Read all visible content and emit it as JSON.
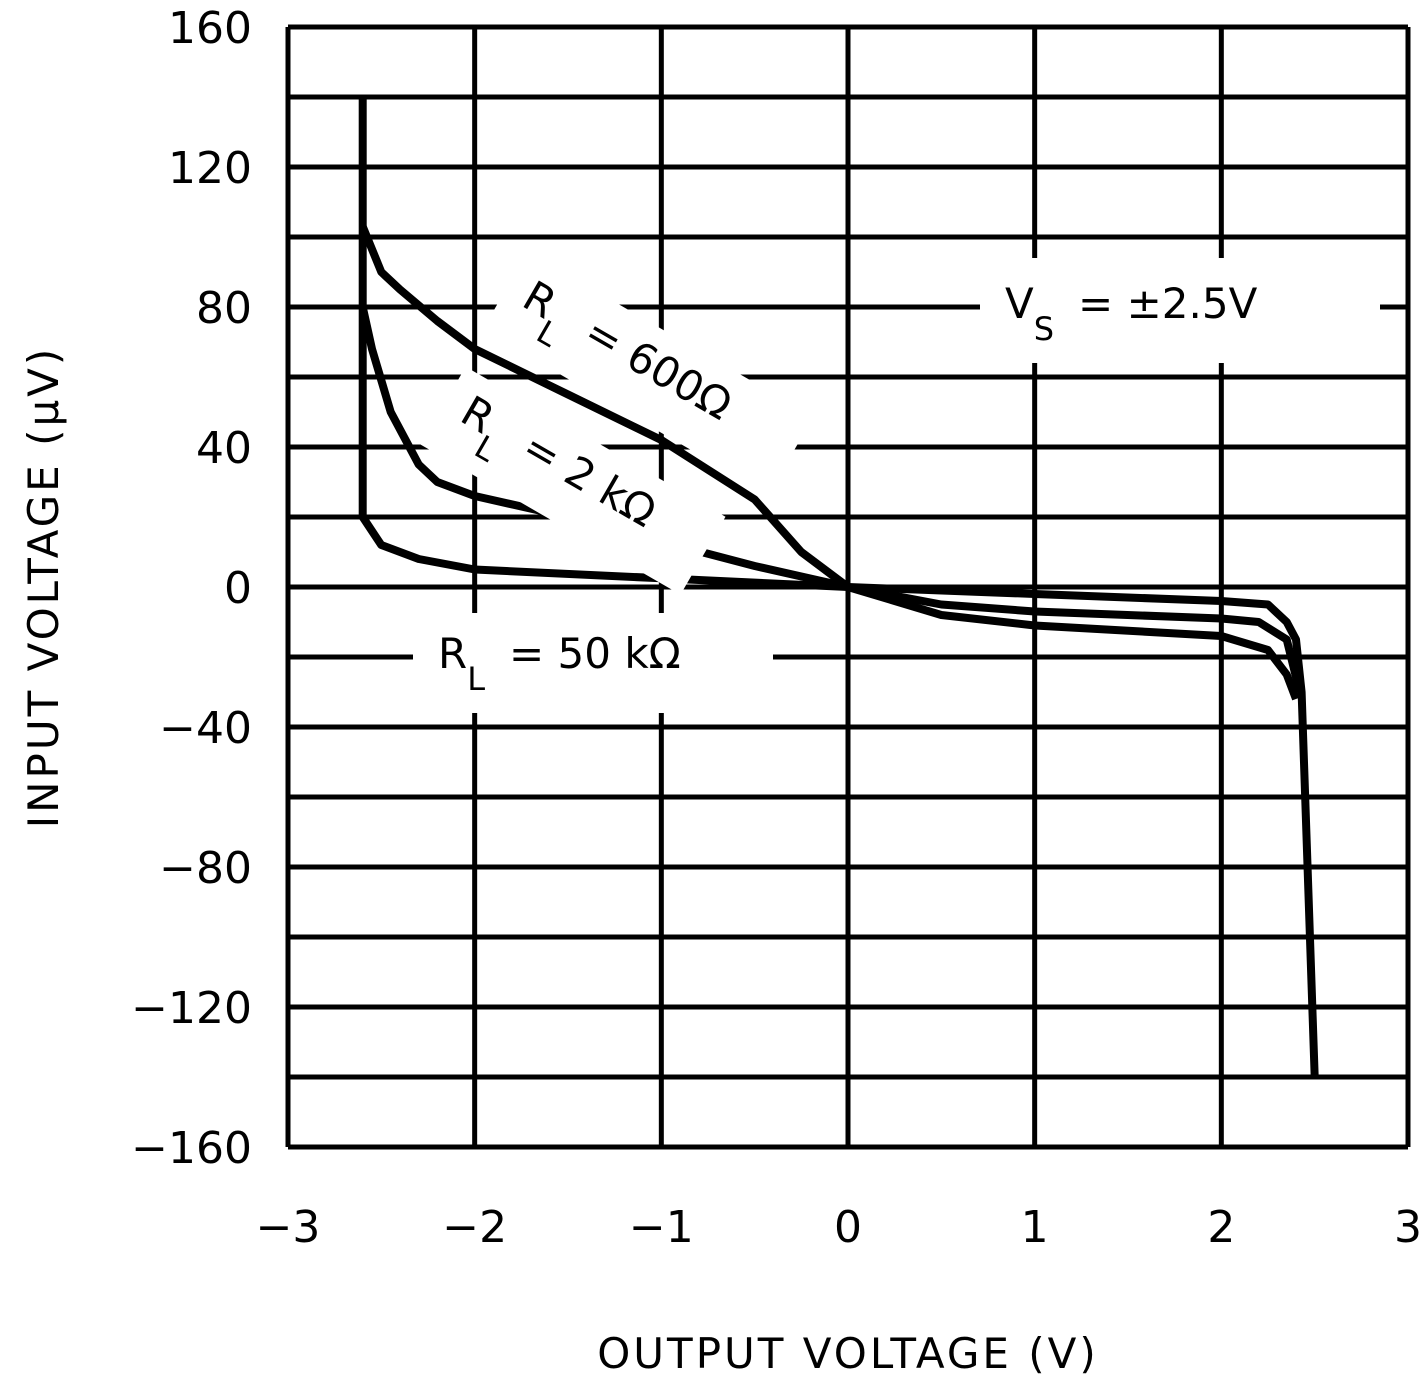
{
  "chart_data": {
    "type": "line",
    "title": "",
    "xlabel": "OUTPUT VOLTAGE (V)",
    "ylabel": "INPUT VOLTAGE (μV)",
    "xlim": [
      -3,
      3
    ],
    "ylim": [
      -160,
      160
    ],
    "x_ticks": [
      "-3",
      "-2",
      "-1",
      "0",
      "1",
      "2",
      "3"
    ],
    "y_ticks": [
      "160",
      "120",
      "80",
      "40",
      "0",
      "-40",
      "-80",
      "-120",
      "-160"
    ],
    "grid": true,
    "legend_position": "inline annotations",
    "annotations": [
      {
        "text": "VS = ±2.5V",
        "main": "V",
        "sub": "S",
        "rest": "= ±2.5V"
      },
      {
        "text": "RL = 600Ω",
        "main": "R",
        "sub": "L",
        "rest": "= 600Ω"
      },
      {
        "text": "RL = 2 kΩ",
        "main": "R",
        "sub": "L",
        "rest": "= 2 kΩ"
      },
      {
        "text": "RL = 50 kΩ",
        "main": "R",
        "sub": "L",
        "rest": "= 50 kΩ"
      }
    ],
    "series": [
      {
        "name": "RL = 50 kΩ",
        "x": [
          -2.6,
          -2.6,
          -2.5,
          -2.3,
          -2.0,
          -1.0,
          0.0,
          1.0,
          2.0,
          2.25,
          2.35,
          2.4,
          2.43,
          2.5
        ],
        "y": [
          140,
          20,
          12,
          8,
          5,
          2.5,
          0,
          -2,
          -4,
          -5,
          -10,
          -15,
          -30,
          -140
        ]
      },
      {
        "name": "RL = 2 kΩ",
        "x": [
          -2.6,
          -2.55,
          -2.45,
          -2.3,
          -2.2,
          -2.0,
          -1.5,
          -1.0,
          -0.5,
          0.0,
          0.5,
          1.0,
          2.0,
          2.2,
          2.35,
          2.42
        ],
        "y": [
          80,
          68,
          50,
          35,
          30,
          26,
          20,
          13,
          6,
          0,
          -5,
          -7,
          -9,
          -10,
          -15,
          -30
        ]
      },
      {
        "name": "RL = 600Ω",
        "x": [
          -2.6,
          -2.5,
          -2.4,
          -2.2,
          -2.0,
          -1.5,
          -1.0,
          -0.5,
          -0.25,
          0.0,
          0.5,
          1.0,
          2.0,
          2.25,
          2.35,
          2.4
        ],
        "y": [
          103,
          90,
          85,
          76,
          68,
          55,
          42,
          25,
          10,
          0,
          -8,
          -11,
          -14,
          -18,
          -25,
          -32
        ]
      }
    ]
  }
}
